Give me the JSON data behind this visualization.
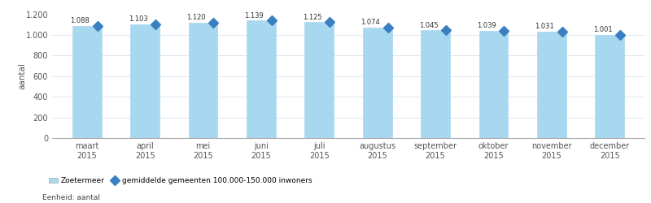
{
  "categories": [
    "maart\n2015",
    "april\n2015",
    "mei\n2015",
    "juni\n2015",
    "juli\n2015",
    "augustus\n2015",
    "september\n2015",
    "oktober\n2015",
    "november\n2015",
    "december\n2015"
  ],
  "bar_values": [
    1088,
    1103,
    1120,
    1139,
    1125,
    1074,
    1045,
    1039,
    1031,
    1001
  ],
  "bar_labels": [
    "1.088",
    "1.103",
    "1.120",
    "1.139",
    "1.125",
    "1.074",
    "1.045",
    "1.039",
    "1.031",
    "1.001"
  ],
  "bar_color": "#a8d8f0",
  "diamond_color": "#3a7fc1",
  "ylabel": "aantal",
  "ylim": [
    0,
    1200
  ],
  "yticks": [
    0,
    200,
    400,
    600,
    800,
    1000,
    1200
  ],
  "ytick_labels": [
    "0",
    "200",
    "400",
    "600",
    "800",
    "1.000",
    "1.200"
  ],
  "legend_bar_label": "Zoetermeer",
  "legend_diamond_label": "gemiddelde gemeenten 100.000-150.000 inwoners",
  "footer_text": "Eenheid: aantal",
  "background_color": "#ffffff",
  "bar_width": 0.5
}
